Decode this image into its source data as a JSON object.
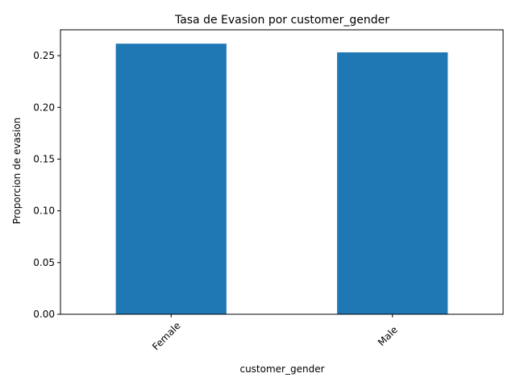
{
  "chart_data": {
    "type": "bar",
    "title": "Tasa de Evasion por customer_gender",
    "xlabel": "customer_gender",
    "ylabel": "Proporcion de evasion",
    "categories": [
      "Female",
      "Male"
    ],
    "values": [
      0.2616,
      0.2532
    ],
    "ylim": [
      0,
      0.275
    ],
    "yticks": [
      0.0,
      0.05,
      0.1,
      0.15,
      0.2,
      0.25
    ],
    "ytick_labels": [
      "0.00",
      "0.05",
      "0.10",
      "0.15",
      "0.20",
      "0.25"
    ],
    "bar_color": "#1f77b4",
    "grid": false,
    "legend": "none"
  }
}
